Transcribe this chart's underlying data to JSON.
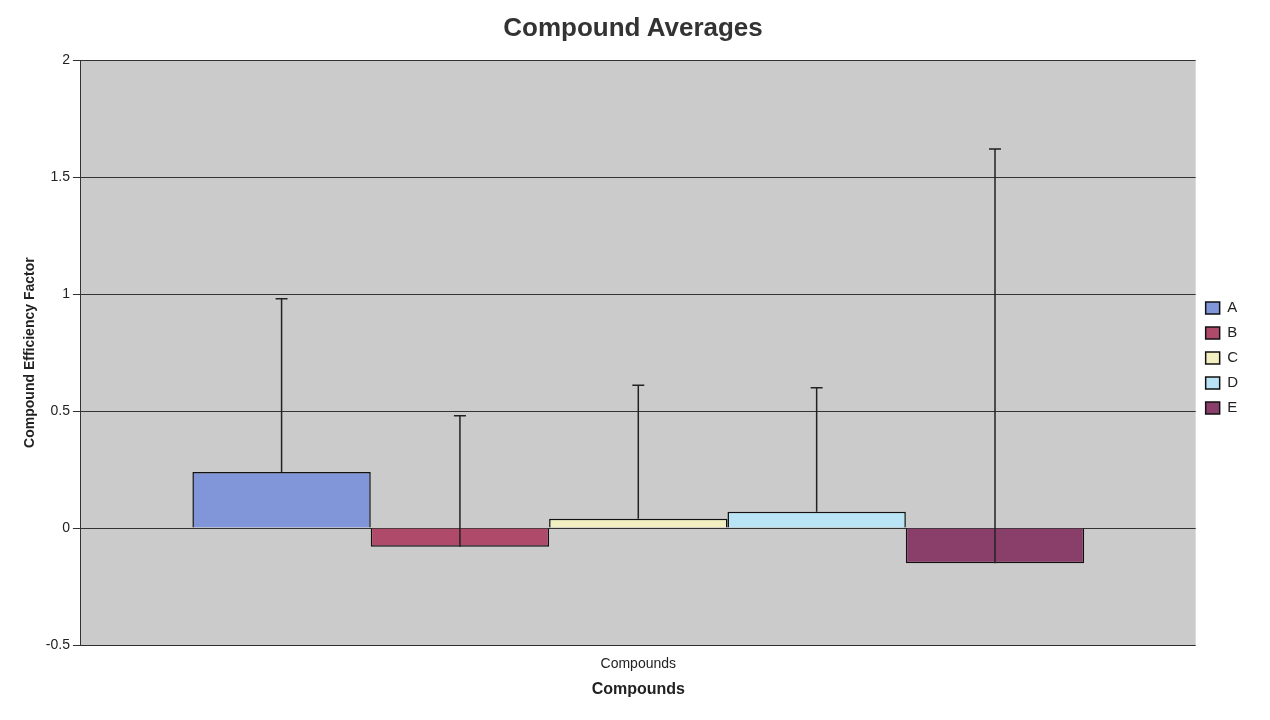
{
  "chart_data": {
    "type": "bar",
    "title": "Compound Averages",
    "xlabel": "Compounds",
    "ylabel": "Compound Efficiency Factor",
    "categories": [
      "Compounds"
    ],
    "series": [
      {
        "name": "A",
        "color": "#8096d8",
        "values": [
          0.24
        ],
        "errors": [
          [
            0.24,
            0.98
          ]
        ]
      },
      {
        "name": "B",
        "color": "#b04a6a",
        "values": [
          -0.08
        ],
        "errors": [
          [
            -0.08,
            0.48
          ]
        ]
      },
      {
        "name": "C",
        "color": "#f2f0c0",
        "values": [
          0.04
        ],
        "errors": [
          [
            0.04,
            0.61
          ]
        ]
      },
      {
        "name": "D",
        "color": "#b8e4f6",
        "values": [
          0.07
        ],
        "errors": [
          [
            0.07,
            0.6
          ]
        ]
      },
      {
        "name": "E",
        "color": "#8a3e6a",
        "values": [
          -0.15
        ],
        "errors": [
          [
            -0.15,
            1.62
          ]
        ]
      }
    ],
    "ylim": [
      -0.5,
      2
    ],
    "yticks": [
      -0.5,
      0,
      0.5,
      1,
      1.5,
      2
    ],
    "grid": "y",
    "legend": "right"
  }
}
